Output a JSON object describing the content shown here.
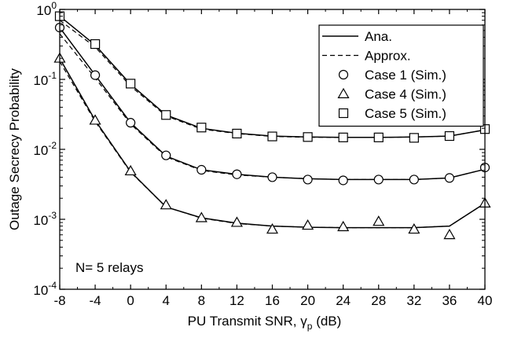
{
  "chart_data": {
    "type": "line",
    "xlabel": "PU Transmit SNR,",
    "xlabel_symbol": "γ",
    "xlabel_subscript": "p",
    "xlabel_unit": "(dB)",
    "ylabel": "Outage Secrecy Probability",
    "xlim": [
      -8,
      40
    ],
    "ylim": [
      0.0001,
      1
    ],
    "yscale": "log",
    "x_ticks": [
      -8,
      -4,
      0,
      4,
      8,
      12,
      16,
      20,
      24,
      28,
      32,
      36,
      40
    ],
    "y_ticks": [
      {
        "value": 1,
        "base": "10",
        "exp": "0"
      },
      {
        "value": 0.1,
        "base": "10",
        "exp": "-1"
      },
      {
        "value": 0.01,
        "base": "10",
        "exp": "-2"
      },
      {
        "value": 0.001,
        "base": "10",
        "exp": "-3"
      },
      {
        "value": 0.0001,
        "base": "10",
        "exp": "-4"
      }
    ],
    "grid": false,
    "legend_position": "top-right",
    "legend": [
      {
        "label": "Ana.",
        "kind": "line",
        "style": "solid"
      },
      {
        "label": "Approx.",
        "kind": "line",
        "style": "dashed"
      },
      {
        "label": "Case 1 (Sim.)",
        "kind": "marker",
        "marker": "circle"
      },
      {
        "label": "Case 4 (Sim.)",
        "kind": "marker",
        "marker": "triangle"
      },
      {
        "label": "Case 5 (Sim.)",
        "kind": "marker",
        "marker": "square"
      }
    ],
    "annotation": "N= 5 relays",
    "series": [
      {
        "case": "Case 5",
        "marker": "square",
        "x": [
          -8,
          -4,
          0,
          4,
          8,
          12,
          16,
          20,
          24,
          28,
          32,
          36,
          40
        ],
        "ana": [
          0.8,
          0.31,
          0.085,
          0.031,
          0.02,
          0.017,
          0.0155,
          0.015,
          0.0148,
          0.0148,
          0.015,
          0.0155,
          0.019
        ],
        "approx": [
          0.7,
          0.29,
          0.08,
          0.03,
          0.0195,
          0.0168,
          0.0153,
          0.0149,
          0.0148,
          0.0148,
          0.015,
          0.0155,
          0.019
        ],
        "sim": [
          0.8,
          0.32,
          0.087,
          0.031,
          0.0205,
          0.0168,
          0.0153,
          0.015,
          0.0148,
          0.0148,
          0.0146,
          0.0155,
          0.0195
        ]
      },
      {
        "case": "Case 1",
        "marker": "circle",
        "x": [
          -8,
          -4,
          0,
          4,
          8,
          12,
          16,
          20,
          24,
          28,
          32,
          36,
          40
        ],
        "ana": [
          0.55,
          0.115,
          0.024,
          0.008,
          0.0051,
          0.0044,
          0.004,
          0.0038,
          0.0037,
          0.0037,
          0.0037,
          0.0039,
          0.0052
        ],
        "approx": [
          0.45,
          0.105,
          0.023,
          0.0078,
          0.005,
          0.0043,
          0.004,
          0.0038,
          0.0037,
          0.0037,
          0.0037,
          0.0039,
          0.0052
        ],
        "sim": [
          0.55,
          0.115,
          0.024,
          0.0082,
          0.0051,
          0.0044,
          0.004,
          0.0037,
          0.0036,
          0.0037,
          0.0037,
          0.0039,
          0.0055
        ]
      },
      {
        "case": "Case 4",
        "marker": "triangle",
        "x": [
          -8,
          -4,
          0,
          4,
          8,
          12,
          16,
          20,
          24,
          28,
          32,
          36,
          40
        ],
        "ana": [
          0.2,
          0.026,
          0.0048,
          0.0015,
          0.00105,
          0.00088,
          0.0008,
          0.00077,
          0.00076,
          0.00076,
          0.00076,
          0.0008,
          0.0017
        ],
        "approx": [
          0.18,
          0.025,
          0.0047,
          0.0015,
          0.00104,
          0.00087,
          0.0008,
          0.00077,
          0.00076,
          0.00076,
          0.00076,
          0.0008,
          0.0017
        ],
        "sim": [
          0.2,
          0.026,
          0.0049,
          0.0016,
          0.00105,
          0.0009,
          0.00072,
          0.00082,
          0.00078,
          0.00093,
          0.00072,
          0.0006,
          0.0017
        ]
      }
    ]
  }
}
